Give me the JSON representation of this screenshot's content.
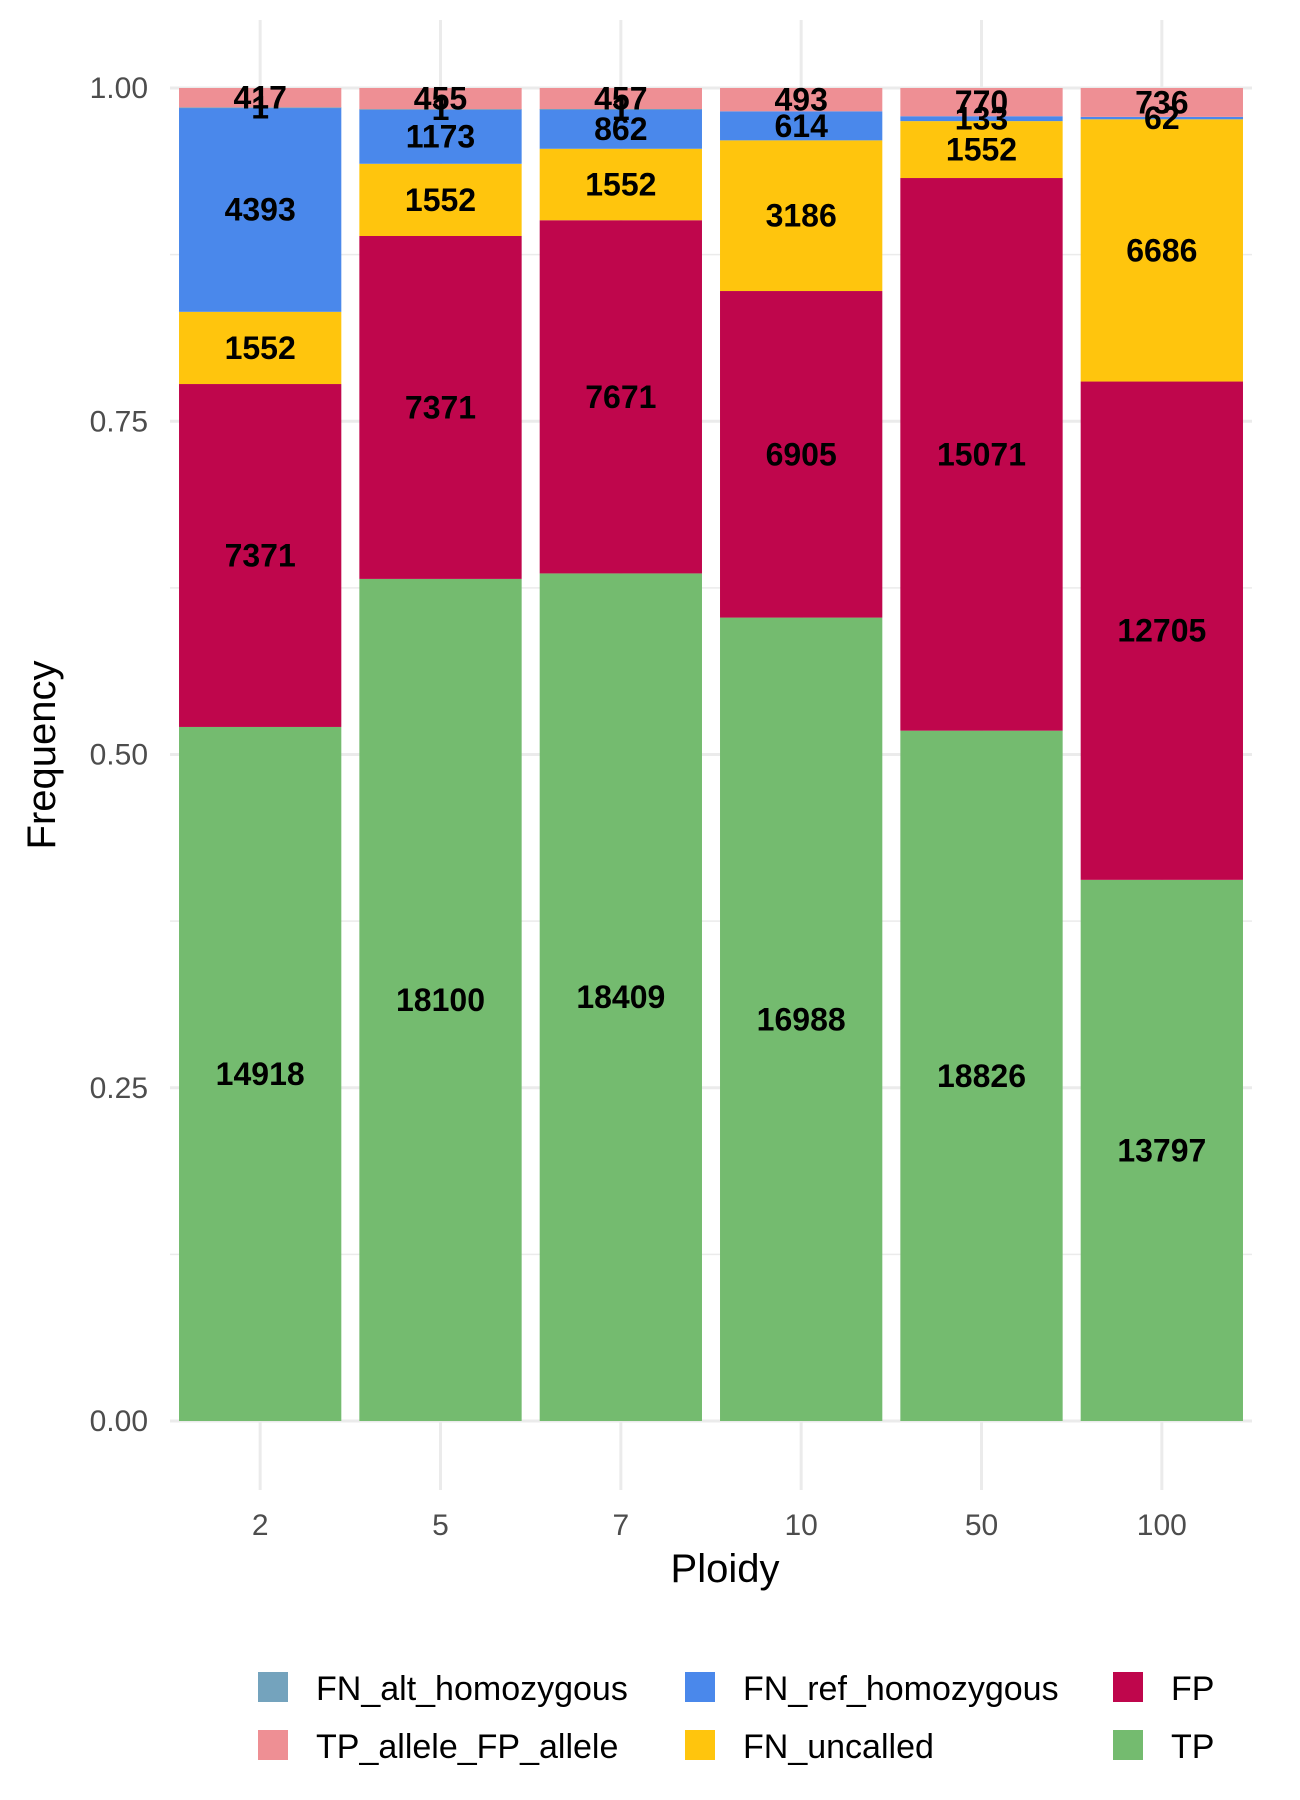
{
  "chart_data": {
    "type": "bar",
    "stacked": true,
    "normalized": true,
    "title": "",
    "xlabel": "Ploidy",
    "ylabel": "Frequency",
    "ylim": [
      0,
      1
    ],
    "yticks": [
      "0.00",
      "0.25",
      "0.50",
      "0.75",
      "1.00"
    ],
    "grid": true,
    "legend_position": "bottom",
    "categories": [
      "2",
      "5",
      "7",
      "10",
      "50",
      "100"
    ],
    "series": [
      {
        "name": "TP",
        "color": "#74BB6F",
        "values": [
          14918,
          18100,
          18409,
          16988,
          18826,
          13797
        ]
      },
      {
        "name": "FP",
        "color": "#BF064C",
        "values": [
          7371,
          7371,
          7671,
          6905,
          15071,
          12705
        ]
      },
      {
        "name": "FN_uncalled",
        "color": "#FFC50D",
        "values": [
          1552,
          1552,
          1552,
          3186,
          1552,
          6686
        ]
      },
      {
        "name": "FN_ref_homozygous",
        "color": "#4A88EB",
        "values": [
          4393,
          1173,
          862,
          614,
          133,
          62
        ]
      },
      {
        "name": "FN_alt_homozygous",
        "color": "#74A3BD",
        "values": [
          1,
          1,
          1,
          0,
          0,
          0
        ]
      },
      {
        "name": "TP_allele_FP_allele",
        "color": "#EE8F94",
        "values": [
          417,
          455,
          457,
          493,
          770,
          736
        ]
      }
    ],
    "legend_order": [
      "FN_alt_homozygous",
      "FN_ref_homozygous",
      "FP",
      "TP_allele_FP_allele",
      "FN_uncalled",
      "TP"
    ]
  }
}
